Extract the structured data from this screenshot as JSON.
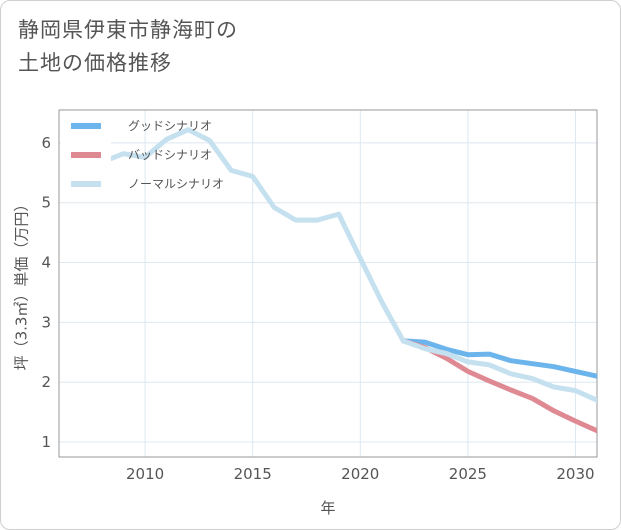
{
  "title": {
    "line1": "静岡県伊東市静海町の",
    "line2": "土地の価格推移"
  },
  "chart_data": {
    "type": "line",
    "title": "静岡県伊東市静海町の土地の価格推移",
    "xlabel": "年",
    "ylabel": "坪（3.3㎡）単価（万円）",
    "xlim": [
      2006,
      2031
    ],
    "ylim": [
      0.75,
      6.55
    ],
    "xticks": [
      2010,
      2015,
      2020,
      2025,
      2030
    ],
    "yticks": [
      1,
      2,
      3,
      4,
      5,
      6
    ],
    "grid": true,
    "legend_position": "top-left",
    "series": [
      {
        "name": "グッドシナリオ",
        "color": "#6cb4ec",
        "x": [
          2022,
          2023,
          2024,
          2025,
          2026,
          2027,
          2028,
          2029,
          2030,
          2031
        ],
        "values": [
          2.69,
          2.67,
          2.55,
          2.46,
          2.47,
          2.36,
          2.31,
          2.26,
          2.18,
          2.1
        ]
      },
      {
        "name": "バッドシナリオ",
        "color": "#df8a93",
        "x": [
          2022,
          2023,
          2024,
          2025,
          2026,
          2027,
          2028,
          2029,
          2030,
          2031
        ],
        "values": [
          2.69,
          2.58,
          2.4,
          2.18,
          2.02,
          1.87,
          1.73,
          1.52,
          1.35,
          1.19
        ]
      },
      {
        "name": "ノーマルシナリオ",
        "color": "#c5e1ef",
        "x": [
          2008,
          2009,
          2010,
          2011,
          2012,
          2013,
          2014,
          2015,
          2016,
          2017,
          2018,
          2019,
          2020,
          2021,
          2022,
          2023,
          2024,
          2025,
          2026,
          2027,
          2028,
          2029,
          2030,
          2031
        ],
        "values": [
          5.68,
          5.82,
          5.76,
          6.06,
          6.22,
          6.04,
          5.54,
          5.44,
          4.92,
          4.71,
          4.71,
          4.81,
          4.07,
          3.34,
          2.69,
          2.56,
          2.48,
          2.34,
          2.29,
          2.14,
          2.06,
          1.92,
          1.86,
          1.7
        ]
      }
    ]
  }
}
